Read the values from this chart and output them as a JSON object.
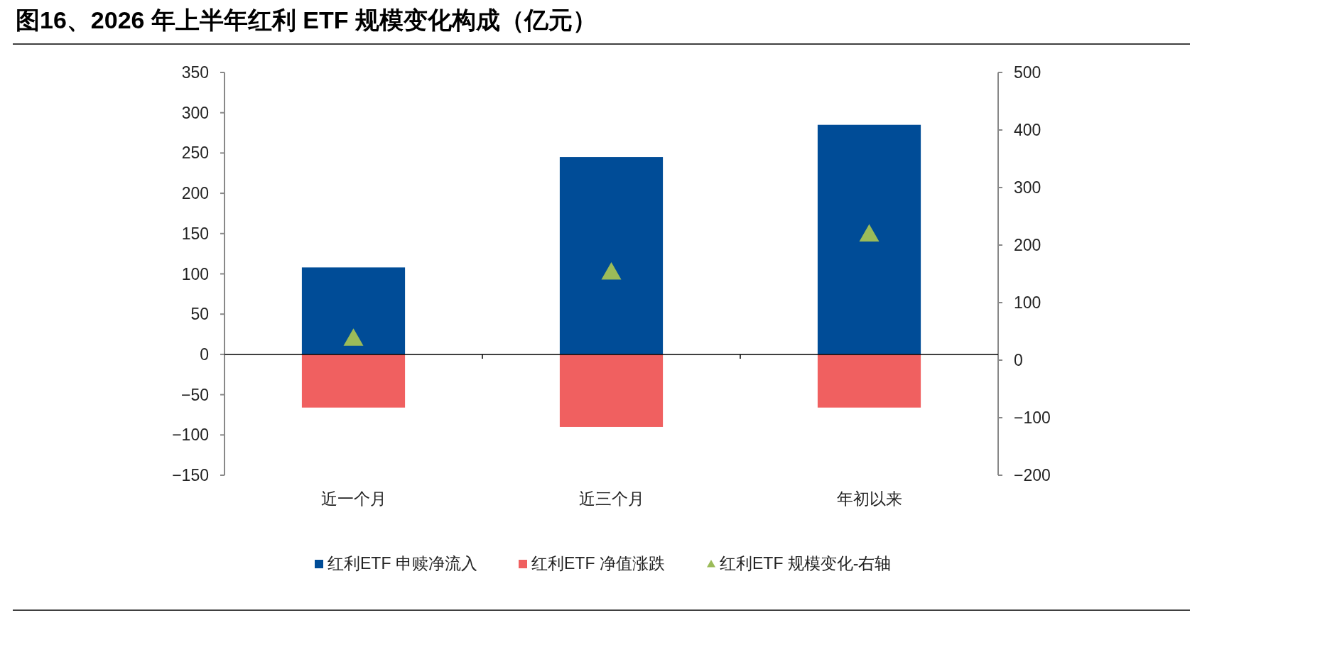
{
  "chart_data": {
    "type": "bar",
    "title": "图16、2026 年上半年红利 ETF 规模变化构成（亿元）",
    "categories": [
      "近一个月",
      "近三个月",
      "年初以来"
    ],
    "stacked": true,
    "legend": "bottom",
    "series": [
      {
        "name": "红利ETF 申赎净流入",
        "color": "#004c97",
        "values": [
          108,
          245,
          285
        ]
      },
      {
        "name": "红利ETF 净值涨跌",
        "color": "#f06060",
        "values": [
          -66,
          -90,
          -66
        ]
      },
      {
        "name": "红利ETF 规模变化-右轴",
        "type": "scatter",
        "marker": "triangle",
        "axis": "y2",
        "color": "#9bbb59",
        "values": [
          38,
          153,
          219
        ]
      }
    ],
    "ylim": [
      -150,
      350
    ],
    "yticks": [
      {
        "value": -150,
        "label": "−150"
      },
      {
        "value": -100,
        "label": "−100"
      },
      {
        "value": -50,
        "label": "−50"
      },
      0,
      50,
      100,
      150,
      200,
      250,
      300,
      350
    ],
    "y2lim": [
      -200,
      500
    ],
    "y2ticks": [
      {
        "value": -200,
        "label": "−200"
      },
      {
        "value": -100,
        "label": "−100"
      },
      0,
      100,
      200,
      300,
      400,
      500
    ]
  }
}
